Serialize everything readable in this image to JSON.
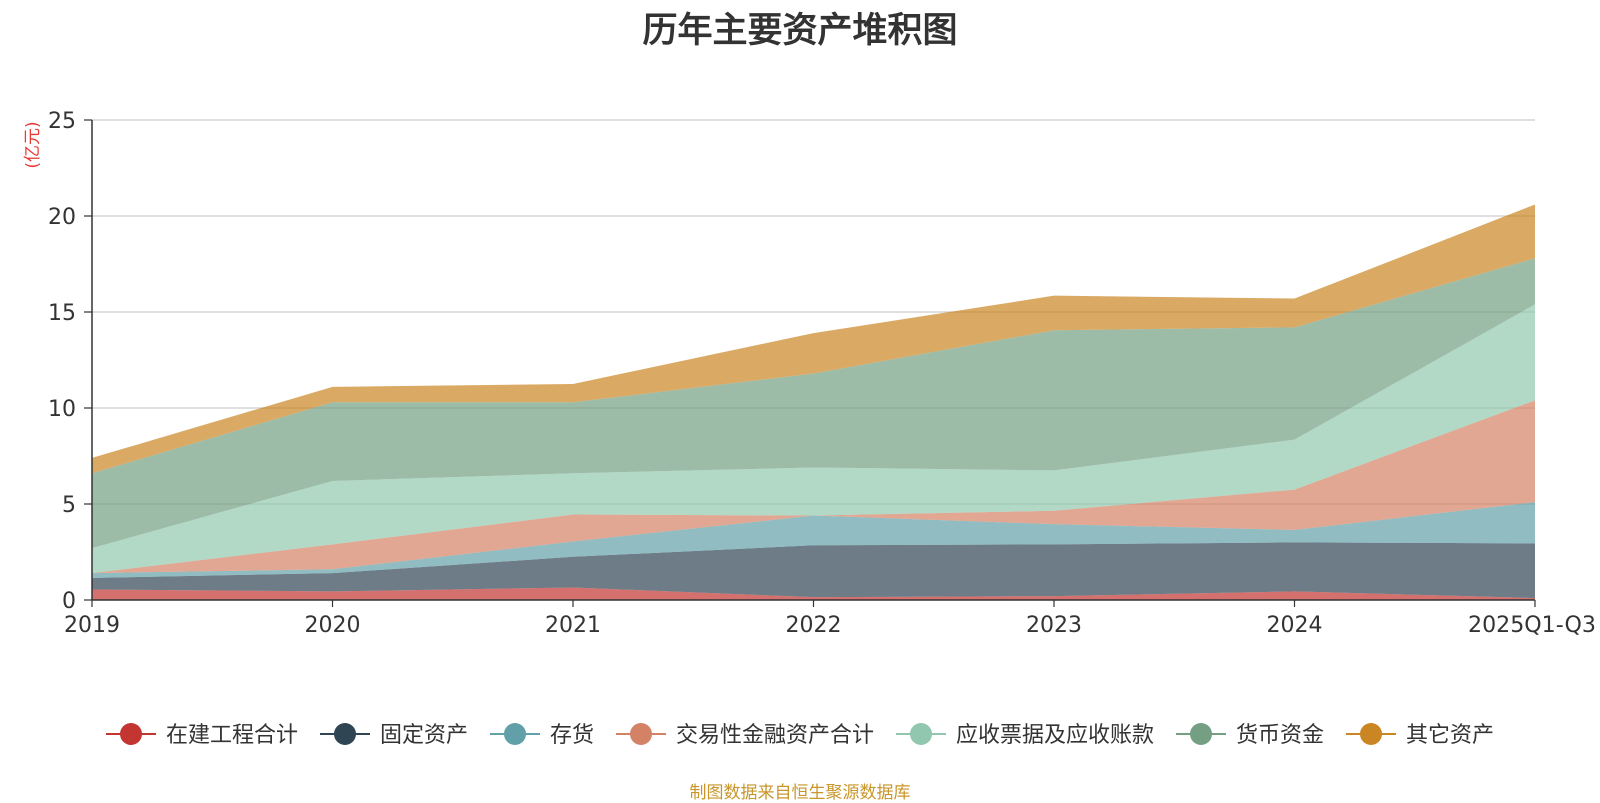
{
  "chart_data": {
    "type": "area",
    "stacked": true,
    "title": "历年主要资产堆积图",
    "ylabel": "(亿元)",
    "xlabel": "",
    "ylim": [
      0,
      25
    ],
    "yticks": [
      0,
      5,
      10,
      15,
      20,
      25
    ],
    "grid": true,
    "legend_position": "bottom",
    "categories": [
      "2019",
      "2020",
      "2021",
      "2022",
      "2023",
      "2024",
      "2025Q1-Q3"
    ],
    "series": [
      {
        "name": "在建工程合计",
        "color": "#c23531",
        "values": [
          0.55,
          0.45,
          0.65,
          0.15,
          0.2,
          0.45,
          0.1
        ]
      },
      {
        "name": "固定资产",
        "color": "#2f4554",
        "values": [
          0.6,
          0.95,
          1.6,
          2.7,
          2.7,
          2.55,
          2.85
        ]
      },
      {
        "name": "存货",
        "color": "#61a0a8",
        "values": [
          0.25,
          0.2,
          0.8,
          1.55,
          1.05,
          0.65,
          2.15
        ]
      },
      {
        "name": "交易性金融资产合计",
        "color": "#d48265",
        "values": [
          0.0,
          1.3,
          1.4,
          0.0,
          0.7,
          2.1,
          5.3
        ]
      },
      {
        "name": "应收票据及应收账款",
        "color": "#91c7ae",
        "values": [
          1.3,
          3.3,
          2.15,
          2.5,
          2.1,
          2.6,
          5.0
        ]
      },
      {
        "name": "货币资金",
        "color": "#749f83",
        "values": [
          3.9,
          4.1,
          3.7,
          4.9,
          7.3,
          5.85,
          2.4
        ]
      },
      {
        "name": "其它资产",
        "color": "#ca8622",
        "values": [
          0.8,
          0.8,
          0.95,
          2.1,
          1.8,
          1.5,
          2.8
        ]
      }
    ],
    "footer": "制图数据来自恒生聚源数据库"
  }
}
